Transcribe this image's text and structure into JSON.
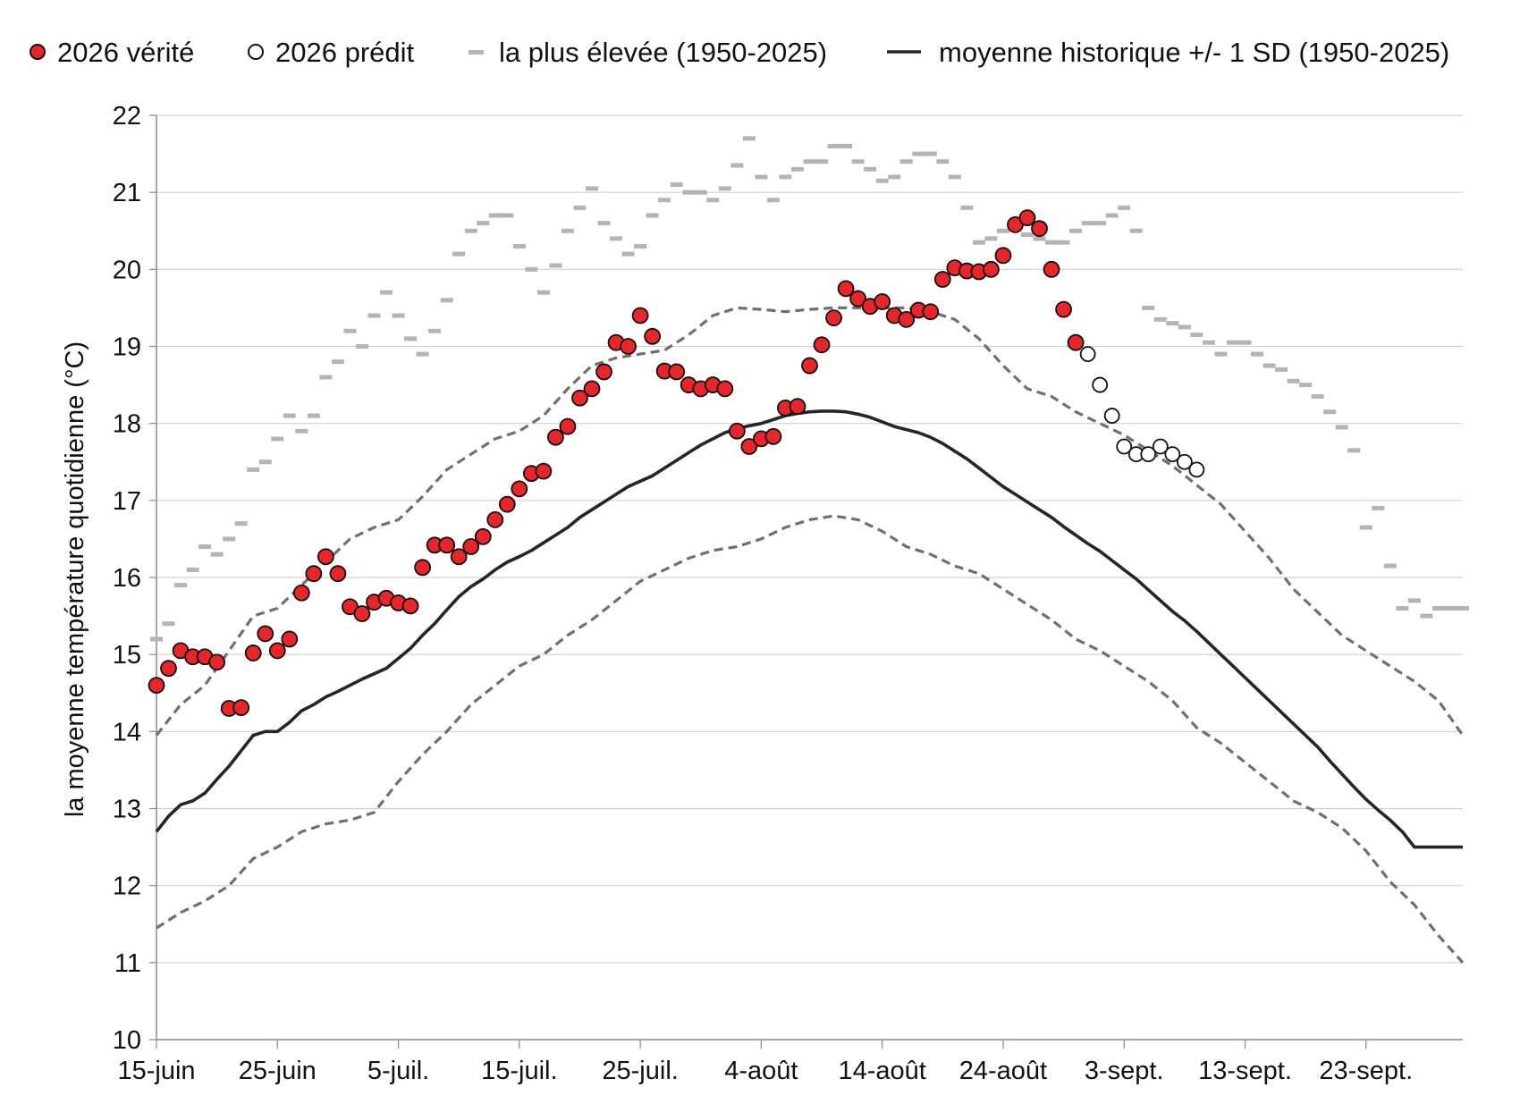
{
  "chart_data": {
    "type": "line",
    "ylabel": "la moyenne température quotidienne (°C)",
    "ylim": [
      10,
      22
    ],
    "yticks": [
      "10",
      "11",
      "12",
      "13",
      "14",
      "15",
      "16",
      "17",
      "18",
      "19",
      "20",
      "21",
      "22"
    ],
    "xlim": [
      0,
      108
    ],
    "xticks": [
      {
        "day": 0,
        "label": "15-juin"
      },
      {
        "day": 10,
        "label": "25-juin"
      },
      {
        "day": 20,
        "label": "5-juil."
      },
      {
        "day": 30,
        "label": "15-juil."
      },
      {
        "day": 40,
        "label": "25-juil."
      },
      {
        "day": 50,
        "label": "4-août"
      },
      {
        "day": 60,
        "label": "14-août"
      },
      {
        "day": 70,
        "label": "24-août"
      },
      {
        "day": 80,
        "label": "3-sept."
      },
      {
        "day": 90,
        "label": "13-sept."
      },
      {
        "day": 100,
        "label": "23-sept."
      }
    ],
    "grid": true,
    "legend_position": "top",
    "colors": {
      "observed_fill": "#e8262a",
      "observed_edge": "#111111",
      "predicted_fill": "#ffffff",
      "record": "#b4b4b4",
      "mean": "#262626",
      "sd": "#707070",
      "grid": "#d0d0d0"
    },
    "legend": [
      {
        "label": "2026 vérité",
        "marker": "red-circle"
      },
      {
        "label": "2026 prédit",
        "marker": "open-circle"
      },
      {
        "label": "la plus élevée (1950-2025)",
        "marker": "gray-dash"
      },
      {
        "label": "moyenne historique +/- 1 SD (1950-2025)",
        "marker": "black-line"
      }
    ],
    "series": [
      {
        "name": "2026 vérité",
        "style": "red-circle",
        "x": [
          0,
          1,
          2,
          3,
          4,
          5,
          6,
          7,
          8,
          9,
          10,
          11,
          12,
          13,
          14,
          15,
          16,
          17,
          18,
          19,
          20,
          21,
          22,
          23,
          24,
          25,
          26,
          27,
          28,
          29,
          30,
          31,
          32,
          33,
          34,
          35,
          36,
          37,
          38,
          39,
          40,
          41,
          42,
          43,
          44,
          45,
          46,
          47,
          48,
          49,
          50,
          51,
          52,
          53,
          54,
          55,
          56,
          57,
          58,
          59,
          60,
          61,
          62,
          63,
          64,
          65,
          66,
          67,
          68,
          69,
          70,
          71,
          72,
          73,
          74,
          75,
          76
        ],
        "y": [
          14.6,
          14.82,
          15.05,
          14.97,
          14.97,
          14.9,
          14.3,
          14.31,
          15.02,
          15.27,
          15.05,
          15.2,
          15.8,
          16.05,
          16.27,
          16.05,
          15.62,
          15.53,
          15.68,
          15.73,
          15.67,
          15.63,
          16.13,
          16.42,
          16.42,
          16.27,
          16.4,
          16.53,
          16.75,
          16.95,
          17.15,
          17.35,
          17.38,
          17.82,
          17.96,
          18.33,
          18.45,
          18.67,
          19.05,
          19.0,
          19.4,
          19.13,
          18.68,
          18.67,
          18.5,
          18.45,
          18.5,
          18.45,
          17.9,
          17.7,
          17.8,
          17.83,
          18.2,
          18.22,
          18.75,
          19.02,
          19.37,
          19.75,
          19.62,
          19.52,
          19.58,
          19.4,
          19.35,
          19.47,
          19.45,
          19.87,
          20.02,
          19.98,
          19.97,
          20.0,
          20.18,
          20.58,
          20.67,
          20.53,
          20.0,
          19.48,
          19.05
        ]
      },
      {
        "name": "2026 prédit",
        "style": "open-circle",
        "x": [
          77,
          78,
          79,
          80,
          81,
          82,
          83,
          84,
          85,
          86
        ],
        "y": [
          18.9,
          18.5,
          18.1,
          17.7,
          17.6,
          17.6,
          17.7,
          17.6,
          17.5,
          17.4
        ]
      },
      {
        "name": "la plus élevée (1950-2025)",
        "style": "gray-dash",
        "x": [
          0,
          1,
          2,
          3,
          4,
          5,
          6,
          7,
          8,
          9,
          10,
          11,
          12,
          13,
          14,
          15,
          16,
          17,
          18,
          19,
          20,
          21,
          22,
          23,
          24,
          25,
          26,
          27,
          28,
          29,
          30,
          31,
          32,
          33,
          34,
          35,
          36,
          37,
          38,
          39,
          40,
          41,
          42,
          43,
          44,
          45,
          46,
          47,
          48,
          49,
          50,
          51,
          52,
          53,
          54,
          55,
          56,
          57,
          58,
          59,
          60,
          61,
          62,
          63,
          64,
          65,
          66,
          67,
          68,
          69,
          70,
          71,
          72,
          73,
          74,
          75,
          76,
          77,
          78,
          79,
          80,
          81,
          82,
          83,
          84,
          85,
          86,
          87,
          88,
          89,
          90,
          91,
          92,
          93,
          94,
          95,
          96,
          97,
          98,
          99,
          100,
          101,
          102,
          103,
          104,
          105,
          106,
          107,
          108
        ],
        "y": [
          15.2,
          15.4,
          15.9,
          16.1,
          16.4,
          16.3,
          16.5,
          16.7,
          17.4,
          17.5,
          17.8,
          18.1,
          17.9,
          18.1,
          18.6,
          18.8,
          19.2,
          19.0,
          19.4,
          19.7,
          19.4,
          19.1,
          18.9,
          19.2,
          19.6,
          20.2,
          20.5,
          20.6,
          20.7,
          20.7,
          20.3,
          20.0,
          19.7,
          20.05,
          20.5,
          20.8,
          21.05,
          20.6,
          20.4,
          20.2,
          20.3,
          20.7,
          20.9,
          21.1,
          21.0,
          21.0,
          20.9,
          21.05,
          21.35,
          21.7,
          21.2,
          20.9,
          21.2,
          21.3,
          21.4,
          21.4,
          21.6,
          21.6,
          21.4,
          21.3,
          21.15,
          21.2,
          21.4,
          21.5,
          21.5,
          21.4,
          21.2,
          20.8,
          20.35,
          20.4,
          20.5,
          20.6,
          20.45,
          20.4,
          20.35,
          20.35,
          20.5,
          20.6,
          20.6,
          20.7,
          20.8,
          20.5,
          19.5,
          19.35,
          19.3,
          19.25,
          19.15,
          19.05,
          18.9,
          19.05,
          19.05,
          18.9,
          18.75,
          18.7,
          18.55,
          18.5,
          18.35,
          18.15,
          17.95,
          17.65,
          16.65,
          16.9,
          16.15,
          15.6,
          15.7,
          15.5,
          15.6,
          15.6,
          15.6
        ]
      },
      {
        "name": "moyenne historique",
        "style": "solid-line",
        "x": [
          0,
          1,
          2,
          3,
          4,
          5,
          6,
          7,
          8,
          9,
          10,
          11,
          12,
          13,
          14,
          15,
          16,
          17,
          18,
          19,
          20,
          21,
          22,
          23,
          24,
          25,
          26,
          27,
          28,
          29,
          30,
          31,
          32,
          33,
          34,
          35,
          36,
          37,
          38,
          39,
          40,
          41,
          42,
          43,
          44,
          45,
          46,
          47,
          48,
          49,
          50,
          51,
          52,
          53,
          54,
          55,
          56,
          57,
          58,
          59,
          60,
          61,
          62,
          63,
          64,
          65,
          66,
          67,
          68,
          69,
          70,
          71,
          72,
          73,
          74,
          75,
          76,
          77,
          78,
          79,
          80,
          81,
          82,
          83,
          84,
          85,
          86,
          87,
          88,
          89,
          90,
          91,
          92,
          93,
          94,
          95,
          96,
          97,
          98,
          99,
          100,
          101,
          102,
          103,
          104,
          105,
          106,
          107,
          108
        ],
        "y": [
          12.7,
          12.9,
          13.05,
          13.1,
          13.2,
          13.38,
          13.55,
          13.75,
          13.95,
          14.0,
          14.0,
          14.12,
          14.27,
          14.35,
          14.45,
          14.52,
          14.6,
          14.68,
          14.75,
          14.82,
          14.95,
          15.08,
          15.25,
          15.4,
          15.58,
          15.75,
          15.88,
          15.98,
          16.1,
          16.2,
          16.27,
          16.35,
          16.45,
          16.55,
          16.65,
          16.78,
          16.88,
          16.98,
          17.08,
          17.18,
          17.25,
          17.32,
          17.42,
          17.52,
          17.62,
          17.72,
          17.8,
          17.88,
          17.93,
          17.97,
          18.0,
          18.05,
          18.1,
          18.13,
          18.15,
          18.16,
          18.16,
          18.15,
          18.12,
          18.08,
          18.02,
          17.96,
          17.92,
          17.88,
          17.82,
          17.74,
          17.64,
          17.54,
          17.42,
          17.3,
          17.18,
          17.08,
          16.98,
          16.88,
          16.78,
          16.66,
          16.55,
          16.44,
          16.34,
          16.22,
          16.1,
          15.98,
          15.84,
          15.7,
          15.56,
          15.44,
          15.3,
          15.15,
          15.0,
          14.85,
          14.7,
          14.55,
          14.4,
          14.25,
          14.1,
          13.95,
          13.8,
          13.62,
          13.45,
          13.28,
          13.12,
          12.98,
          12.85,
          12.7,
          12.5,
          12.5,
          12.5,
          12.5,
          12.5
        ]
      },
      {
        "name": "moyenne + 1 SD",
        "style": "dashed-line",
        "x": [
          0,
          2,
          4,
          6,
          8,
          10,
          12,
          14,
          16,
          18,
          20,
          22,
          24,
          26,
          28,
          30,
          32,
          34,
          36,
          38,
          40,
          42,
          44,
          46,
          48,
          50,
          52,
          54,
          56,
          58,
          60,
          62,
          64,
          66,
          68,
          70,
          72,
          74,
          76,
          78,
          80,
          82,
          84,
          86,
          88,
          90,
          92,
          94,
          96,
          98,
          100,
          102,
          104,
          106,
          108
        ],
        "y": [
          13.95,
          14.35,
          14.6,
          15.05,
          15.5,
          15.6,
          15.9,
          16.2,
          16.5,
          16.65,
          16.75,
          17.05,
          17.4,
          17.6,
          17.8,
          17.9,
          18.1,
          18.45,
          18.75,
          18.85,
          18.9,
          18.95,
          19.15,
          19.4,
          19.5,
          19.48,
          19.45,
          19.48,
          19.5,
          19.5,
          19.5,
          19.5,
          19.45,
          19.35,
          19.1,
          18.75,
          18.45,
          18.35,
          18.15,
          18.0,
          17.85,
          17.65,
          17.45,
          17.2,
          16.95,
          16.6,
          16.25,
          15.85,
          15.55,
          15.25,
          15.05,
          14.85,
          14.65,
          14.4,
          13.95
        ]
      },
      {
        "name": "moyenne - 1 SD",
        "style": "dashed-line",
        "x": [
          0,
          2,
          4,
          6,
          8,
          10,
          12,
          14,
          16,
          18,
          20,
          22,
          24,
          26,
          28,
          30,
          32,
          34,
          36,
          38,
          40,
          42,
          44,
          46,
          48,
          50,
          52,
          54,
          56,
          58,
          60,
          62,
          64,
          66,
          68,
          70,
          72,
          74,
          76,
          78,
          80,
          82,
          84,
          86,
          88,
          90,
          92,
          94,
          96,
          98,
          100,
          102,
          104,
          106,
          108
        ],
        "y": [
          11.45,
          11.65,
          11.8,
          12.0,
          12.35,
          12.5,
          12.7,
          12.8,
          12.85,
          12.95,
          13.35,
          13.7,
          14.0,
          14.35,
          14.6,
          14.85,
          15.0,
          15.25,
          15.45,
          15.7,
          15.95,
          16.1,
          16.25,
          16.35,
          16.4,
          16.5,
          16.65,
          16.75,
          16.8,
          16.75,
          16.6,
          16.4,
          16.3,
          16.15,
          16.05,
          15.85,
          15.65,
          15.45,
          15.2,
          15.05,
          14.85,
          14.65,
          14.4,
          14.05,
          13.85,
          13.6,
          13.35,
          13.1,
          12.95,
          12.75,
          12.45,
          12.05,
          11.75,
          11.35,
          11.0
        ]
      }
    ]
  }
}
